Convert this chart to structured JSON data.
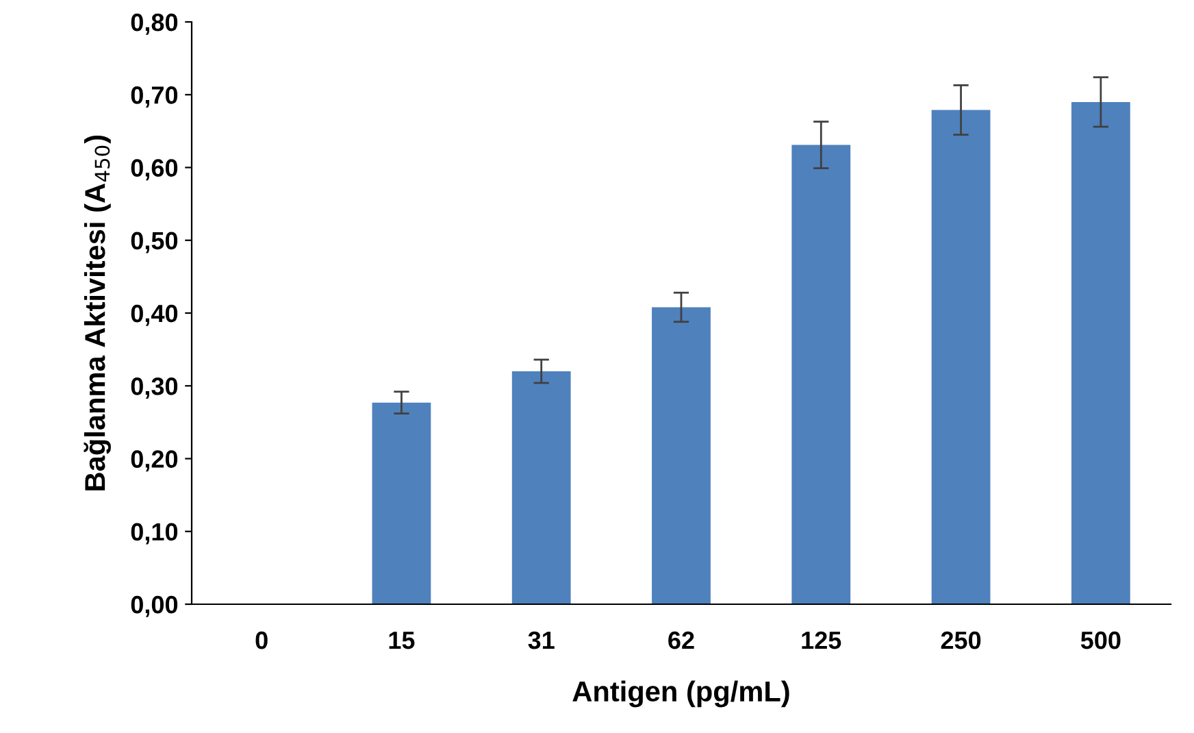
{
  "chart_data": {
    "type": "bar",
    "xlabel": "Antigen (pg/mL)",
    "ylabel": "Bağlanma Aktivitesi (A$_{450}$)",
    "categories": [
      "0",
      "15",
      "31",
      "62",
      "125",
      "250",
      "500"
    ],
    "values": [
      0,
      0.277,
      0.32,
      0.408,
      0.631,
      0.679,
      0.69
    ],
    "errors": [
      null,
      0.015,
      0.016,
      0.02,
      0.032,
      0.034,
      0.034
    ],
    "color": "#4f81bd",
    "ylim": [
      0,
      0.8
    ],
    "yticks": [
      {
        "value": 0,
        "label": "0,00"
      },
      {
        "value": 0.1,
        "label": "0,10"
      },
      {
        "value": 0.2,
        "label": "0,20"
      },
      {
        "value": 0.3,
        "label": "0,30"
      },
      {
        "value": 0.4,
        "label": "0,40"
      },
      {
        "value": 0.5,
        "label": "0,50"
      },
      {
        "value": 0.6,
        "label": "0,60"
      },
      {
        "value": 0.7,
        "label": "0,70"
      },
      {
        "value": 0.8,
        "label": "0,80"
      }
    ],
    "grid": false
  }
}
